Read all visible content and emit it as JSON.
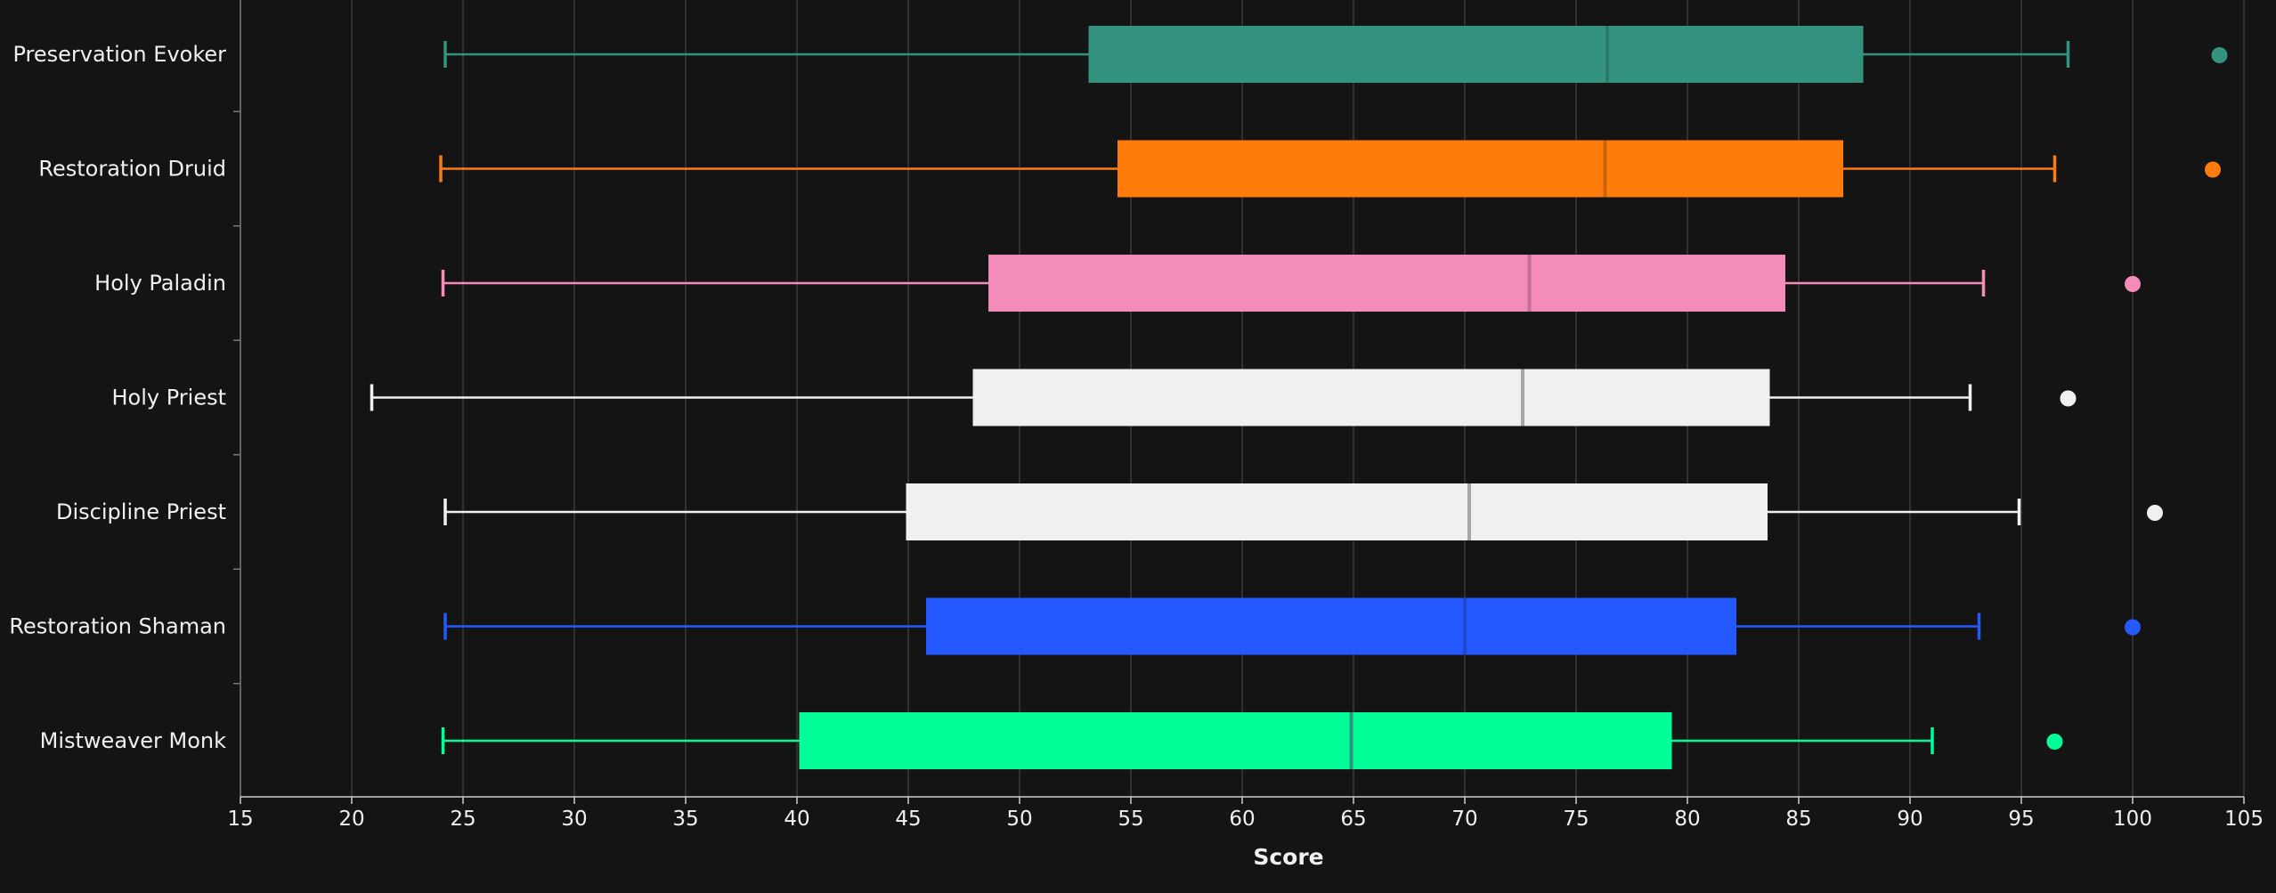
{
  "chart_data": {
    "type": "boxplot",
    "orientation": "horizontal",
    "xlabel": "Score",
    "ylabel": "",
    "xlim": [
      15,
      105
    ],
    "xticks": [
      15,
      20,
      25,
      30,
      35,
      40,
      45,
      50,
      55,
      60,
      65,
      70,
      75,
      80,
      85,
      90,
      95,
      100,
      105
    ],
    "grid": true,
    "background": "#141414",
    "series": [
      {
        "name": "Preservation Evoker",
        "color": "#33937f",
        "median_color": "#2a7a69",
        "whisker_low": 24.2,
        "q1": 53.1,
        "median": 76.4,
        "q3": 87.9,
        "whisker_high": 97.1,
        "outlier": 103.9
      },
      {
        "name": "Restoration Druid",
        "color": "#ff7c0a",
        "median_color": "#cc6308",
        "whisker_low": 24.0,
        "q1": 54.4,
        "median": 76.3,
        "q3": 87.0,
        "whisker_high": 96.5,
        "outlier": 103.6
      },
      {
        "name": "Holy Paladin",
        "color": "#f48cba",
        "median_color": "#c37095",
        "whisker_low": 24.1,
        "q1": 48.6,
        "median": 72.9,
        "q3": 84.4,
        "whisker_high": 93.3,
        "outlier": 100.0
      },
      {
        "name": "Holy Priest",
        "color": "#f0f0f0",
        "median_color": "#a8a8a8",
        "whisker_low": 20.9,
        "q1": 47.9,
        "median": 72.6,
        "q3": 83.7,
        "whisker_high": 92.7,
        "outlier": 97.1
      },
      {
        "name": "Discipline Priest",
        "color": "#f0f0f0",
        "median_color": "#a8a8a8",
        "whisker_low": 24.2,
        "q1": 44.9,
        "median": 70.2,
        "q3": 83.6,
        "whisker_high": 94.9,
        "outlier": 101.0
      },
      {
        "name": "Restoration Shaman",
        "color": "#2459ff",
        "median_color": "#1d47cc",
        "whisker_low": 24.2,
        "q1": 45.8,
        "median": 70.0,
        "q3": 82.2,
        "whisker_high": 93.1,
        "outlier": 100.0
      },
      {
        "name": "Mistweaver Monk",
        "color": "#00ff98",
        "median_color": "#33937f",
        "whisker_low": 24.1,
        "q1": 40.1,
        "median": 64.9,
        "q3": 79.3,
        "whisker_high": 91.0,
        "outlier": 96.5
      }
    ]
  }
}
